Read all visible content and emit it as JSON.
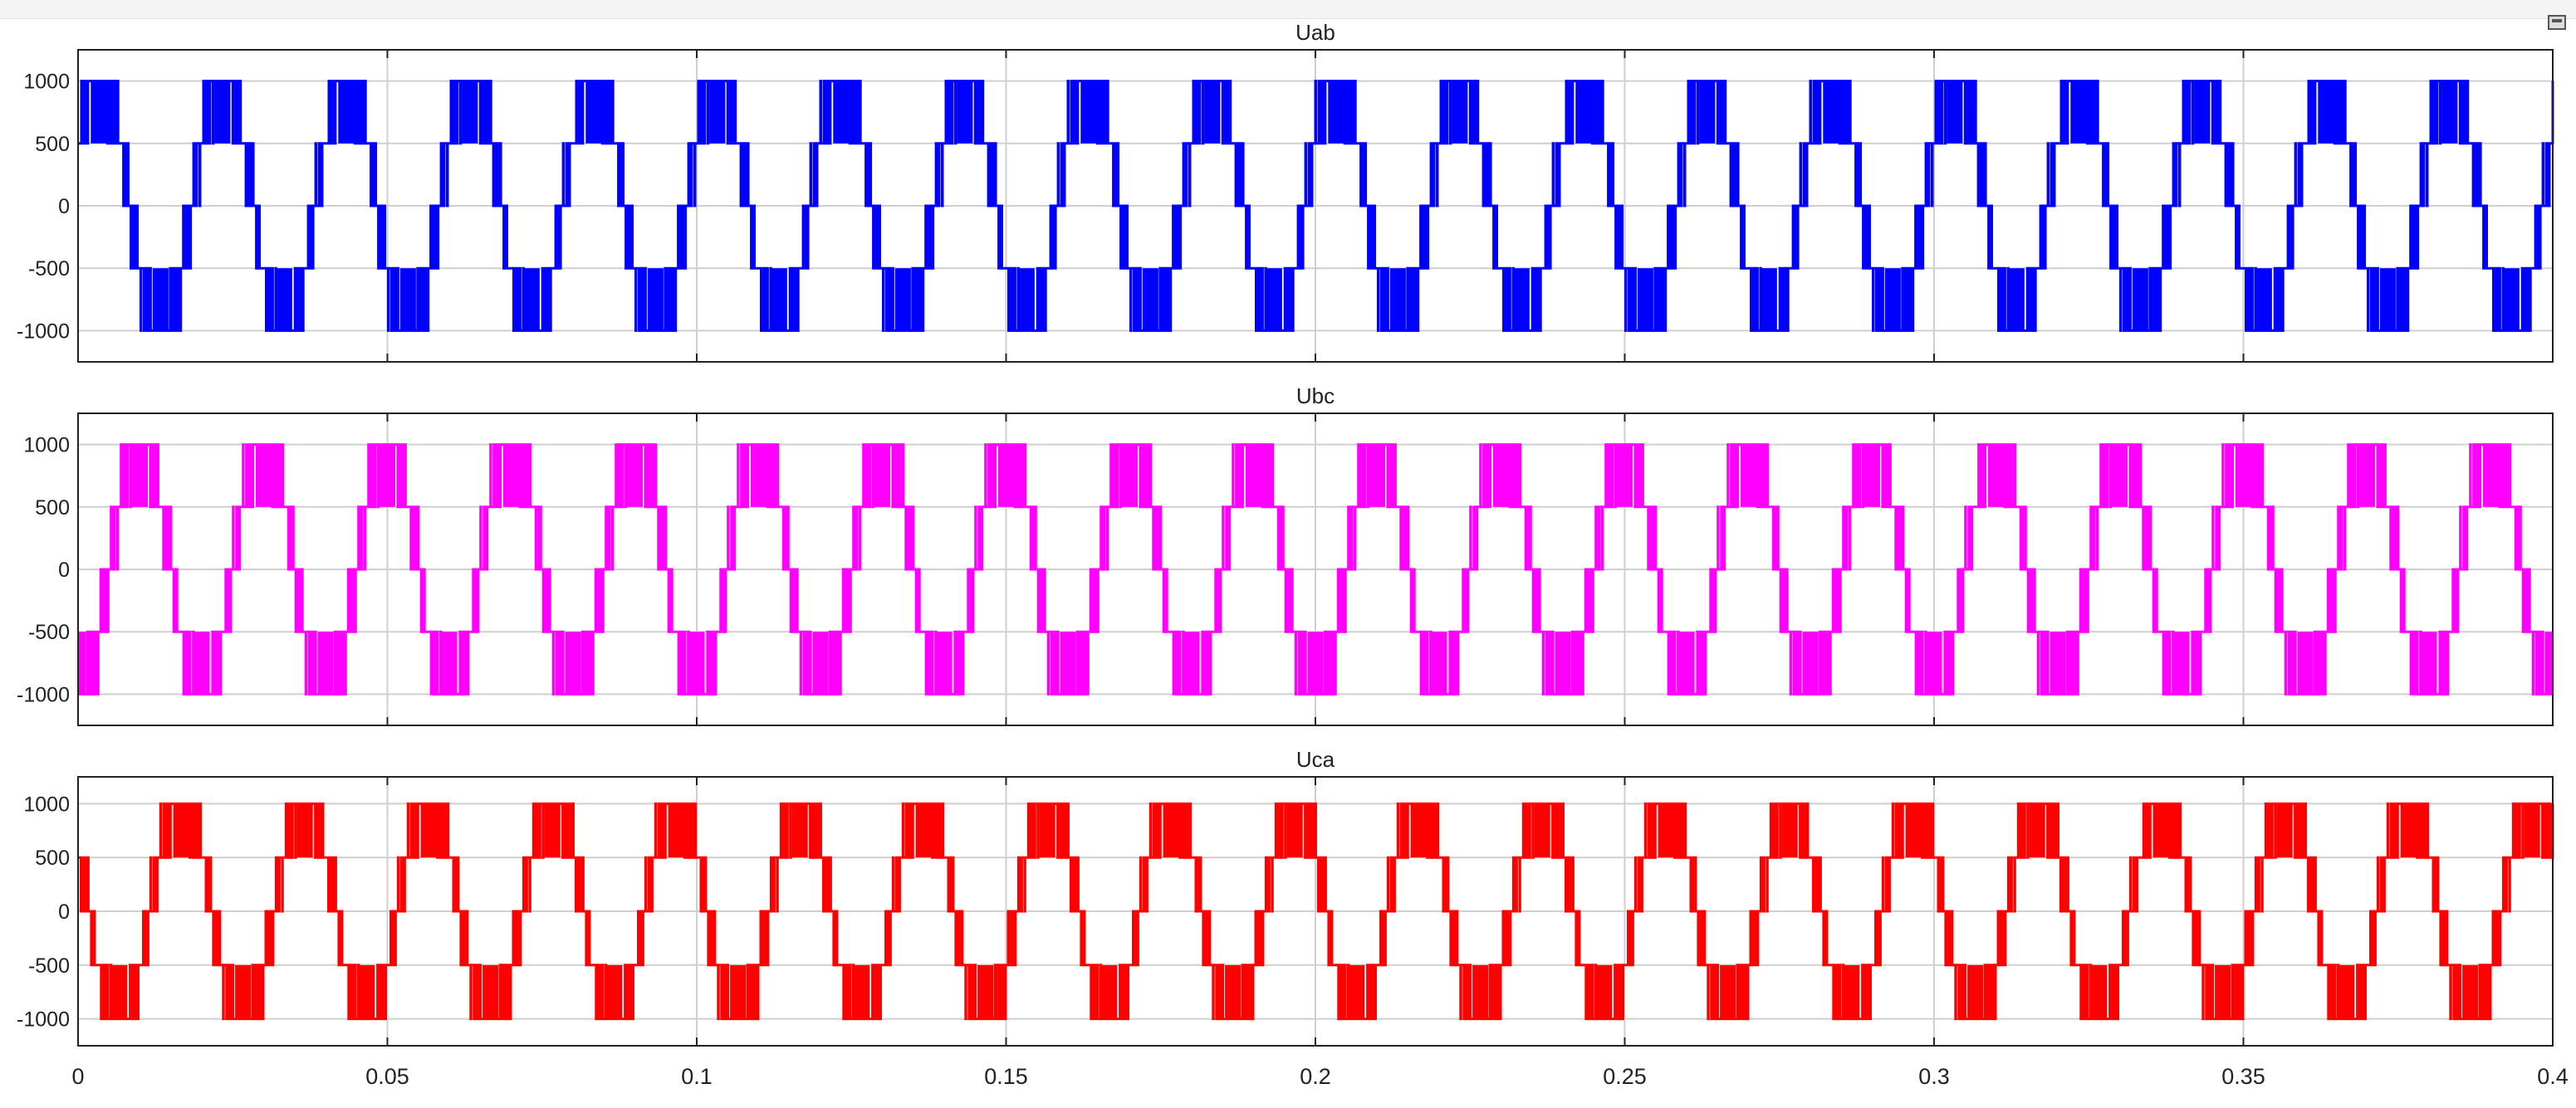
{
  "chart_data": [
    {
      "type": "line",
      "title": "Uab",
      "color": "#0000ff",
      "phase_deg": 30,
      "frequency_hz": 50,
      "amplitude": 1000,
      "xlim": [
        0,
        0.4
      ],
      "ylim": [
        -1250,
        1250
      ],
      "xticks": [
        0,
        0.05,
        0.1,
        0.15,
        0.2,
        0.25,
        0.3,
        0.35,
        0.4
      ],
      "yticks": [
        -1000,
        -500,
        0,
        500,
        1000
      ],
      "grid": true
    },
    {
      "type": "line",
      "title": "Ubc",
      "color": "#ff00ff",
      "phase_deg": -90,
      "frequency_hz": 50,
      "amplitude": 1000,
      "xlim": [
        0,
        0.4
      ],
      "ylim": [
        -1250,
        1250
      ],
      "xticks": [
        0,
        0.05,
        0.1,
        0.15,
        0.2,
        0.25,
        0.3,
        0.35,
        0.4
      ],
      "yticks": [
        -1000,
        -500,
        0,
        500,
        1000
      ],
      "grid": true
    },
    {
      "type": "line",
      "title": "Uca",
      "color": "#ff0000",
      "phase_deg": 150,
      "frequency_hz": 50,
      "amplitude": 1000,
      "xlim": [
        0,
        0.4
      ],
      "ylim": [
        -1250,
        1250
      ],
      "xticks": [
        0,
        0.05,
        0.1,
        0.15,
        0.2,
        0.25,
        0.3,
        0.35,
        0.4
      ],
      "yticks": [
        -1000,
        -500,
        0,
        500,
        1000
      ],
      "grid": true
    }
  ],
  "x_tick_labels": [
    "0",
    "0.05",
    "0.1",
    "0.15",
    "0.2",
    "0.25",
    "0.3",
    "0.35",
    "0.4"
  ],
  "y_tick_labels": [
    "1000",
    "500",
    "0",
    "-500",
    "-1000"
  ],
  "dock_icon": "undock-window-icon"
}
